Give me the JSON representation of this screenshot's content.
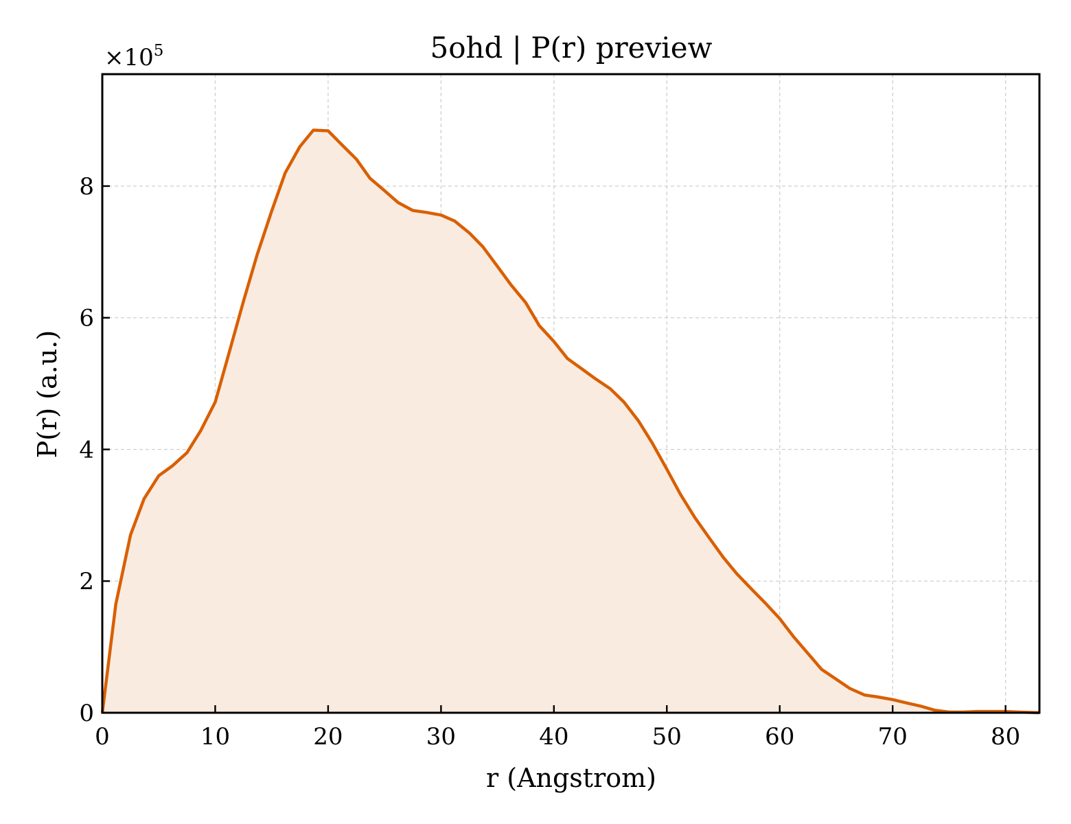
{
  "chart_data": {
    "type": "area",
    "title": "5ohd | P(r) preview",
    "xlabel": "r (Angstrom)",
    "ylabel": "P(r) (a.u.)",
    "y_multiplier_label": "×10",
    "y_multiplier_exponent": "5",
    "xlim": [
      0,
      83
    ],
    "ylim": [
      0,
      9.7
    ],
    "x_scale": "linear",
    "y_scale": "linear",
    "x_ticks": [
      0,
      10,
      20,
      30,
      40,
      50,
      60,
      70,
      80
    ],
    "y_ticks": [
      0,
      2,
      4,
      6,
      8
    ],
    "grid": true,
    "legend": "none",
    "colors": {
      "line": "#d95f02",
      "fill": "#f9ebe0",
      "grid": "#cfcfcf"
    },
    "series": [
      {
        "x": [
          0,
          1.2,
          2.5,
          3.7,
          5.0,
          6.2,
          7.5,
          8.7,
          10.0,
          11.2,
          12.5,
          13.7,
          15.0,
          16.2,
          17.5,
          18.7,
          20.0,
          21.2,
          22.5,
          23.7,
          25.0,
          26.2,
          27.5,
          28.7,
          30.0,
          31.2,
          32.5,
          33.7,
          35.0,
          36.2,
          37.5,
          38.7,
          40.0,
          41.2,
          42.5,
          43.7,
          45.0,
          46.2,
          47.5,
          48.7,
          50.0,
          51.2,
          52.5,
          53.7,
          55.0,
          56.2,
          57.5,
          58.7,
          60.0,
          61.2,
          62.5,
          63.7,
          65.0,
          66.2,
          67.5,
          68.7,
          70.0,
          71.2,
          72.5,
          73.7,
          75.0,
          76.2,
          77.5,
          78.7,
          80.0,
          81.2,
          83.0
        ],
        "y": [
          0,
          1.65,
          2.7,
          3.25,
          3.6,
          3.75,
          3.95,
          4.28,
          4.72,
          5.45,
          6.25,
          6.95,
          7.62,
          8.2,
          8.6,
          8.85,
          8.84,
          8.63,
          8.41,
          8.12,
          7.93,
          7.75,
          7.63,
          7.6,
          7.56,
          7.47,
          7.29,
          7.08,
          6.78,
          6.5,
          6.23,
          5.88,
          5.64,
          5.38,
          5.22,
          5.07,
          4.92,
          4.72,
          4.43,
          4.1,
          3.7,
          3.32,
          2.96,
          2.67,
          2.36,
          2.11,
          1.88,
          1.67,
          1.43,
          1.16,
          0.9,
          0.66,
          0.51,
          0.37,
          0.27,
          0.24,
          0.2,
          0.15,
          0.1,
          0.04,
          0.01,
          0.01,
          0.02,
          0.02,
          0.02,
          0.01,
          0.0
        ]
      }
    ]
  }
}
